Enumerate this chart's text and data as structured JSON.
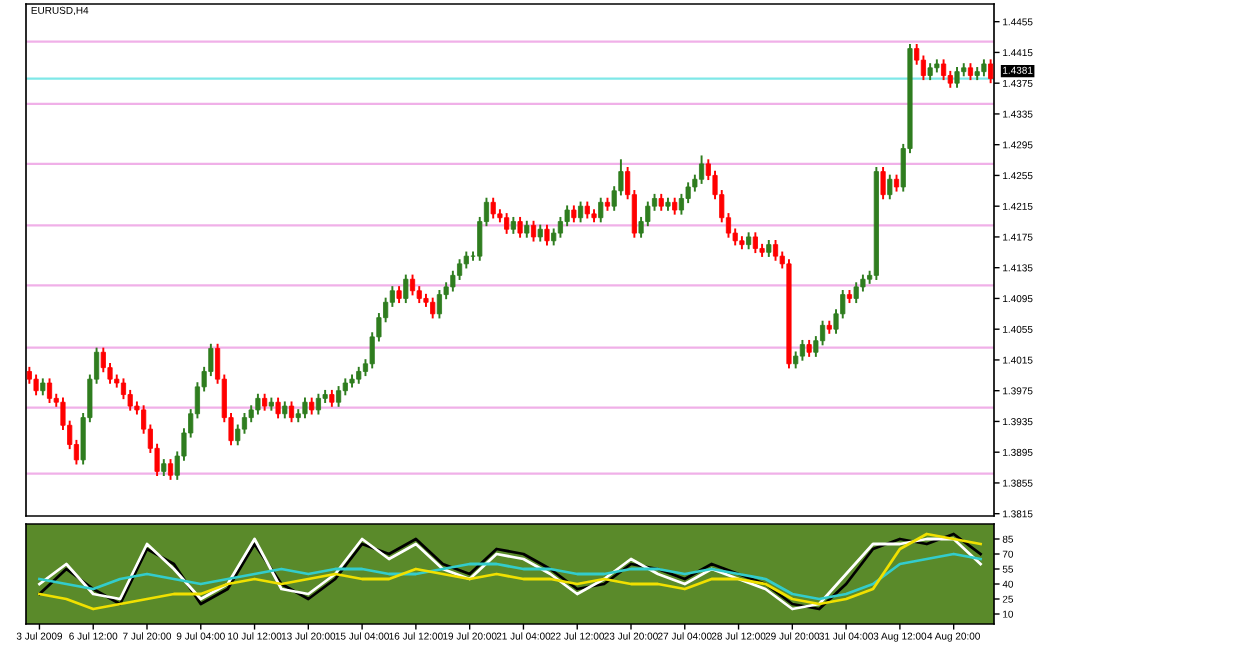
{
  "chart_data": [
    {
      "type": "candlestick",
      "title": "EURUSD,H4",
      "categories": [
        null,
        null,
        null,
        null,
        null,
        null,
        null,
        null,
        null,
        null,
        null,
        null,
        null,
        null,
        null,
        null,
        null,
        null,
        null,
        null,
        null,
        null,
        null,
        null,
        null,
        null,
        null,
        null,
        null,
        null,
        null,
        null,
        null,
        null,
        null,
        null,
        null,
        null,
        null,
        null,
        null,
        null,
        null,
        null,
        null,
        null,
        null,
        null,
        null,
        null,
        null,
        null,
        null,
        null,
        null,
        null,
        null,
        null,
        null,
        null,
        null,
        null,
        null,
        null,
        null,
        null,
        null,
        null,
        null,
        null,
        null,
        null,
        null,
        null,
        null,
        null,
        null,
        null,
        null,
        null,
        null,
        null,
        null,
        null,
        null,
        null,
        null,
        null,
        null,
        null,
        null,
        null,
        null,
        null,
        null,
        null,
        null,
        null,
        null,
        null,
        null,
        null,
        null,
        null,
        null,
        null,
        null,
        null,
        null,
        null,
        null,
        null,
        null,
        null,
        null,
        null,
        null,
        null,
        null,
        null,
        null,
        null,
        null,
        null,
        null,
        null,
        null,
        null,
        null,
        null,
        null,
        null,
        null,
        null,
        null,
        null,
        null,
        null,
        null,
        null,
        null,
        null,
        null,
        null
      ],
      "colors": [
        "#ff0000",
        "#ff0000",
        "#2f7d1f",
        "#ff0000",
        "#ff0000",
        "#ff0000",
        "#ff0000",
        "#ff0000",
        "#2f7d1f",
        "#2f7d1f",
        "#2f7d1f",
        "#ff0000",
        "#ff0000",
        "#ff0000",
        "#ff0000",
        "#ff0000",
        "#ff0000",
        "#ff0000",
        "#ff0000",
        "#ff0000",
        "#2f7d1f",
        "#ff0000",
        "#2f7d1f",
        "#2f7d1f",
        "#2f7d1f",
        "#2f7d1f",
        "#2f7d1f",
        "#2f7d1f",
        "#ff0000",
        "#ff0000",
        "#ff0000",
        "#2f7d1f",
        "#2f7d1f",
        "#2f7d1f",
        "#2f7d1f",
        "#ff0000",
        "#2f7d1f",
        "#ff0000",
        "#2f7d1f",
        "#ff0000",
        "#2f7d1f",
        "#2f7d1f",
        "#ff0000",
        "#2f7d1f",
        "#2f7d1f",
        "#ff0000",
        "#2f7d1f",
        "#2f7d1f",
        "#2f7d1f",
        "#2f7d1f",
        "#2f7d1f",
        "#2f7d1f",
        "#2f7d1f",
        "#2f7d1f",
        "#2f7d1f",
        "#ff0000",
        "#2f7d1f",
        "#ff0000",
        "#ff0000",
        "#ff0000",
        "#ff0000",
        "#2f7d1f",
        "#2f7d1f",
        "#2f7d1f",
        "#2f7d1f",
        "#2f7d1f",
        "#2f7d1f",
        "#2f7d1f",
        "#2f7d1f",
        "#ff0000",
        "#ff0000",
        "#ff0000",
        "#2f7d1f",
        "#ff0000",
        "#2f7d1f",
        "#ff0000",
        "#2f7d1f",
        "#ff0000",
        "#2f7d1f",
        "#2f7d1f",
        "#2f7d1f",
        "#ff0000",
        "#2f7d1f",
        "#ff0000",
        "#ff0000",
        "#2f7d1f",
        "#ff0000",
        "#2f7d1f",
        "#2f7d1f",
        "#ff0000",
        "#ff0000",
        "#2f7d1f",
        "#2f7d1f",
        "#2f7d1f",
        "#ff0000",
        "#2f7d1f",
        "#ff0000",
        "#2f7d1f",
        "#2f7d1f",
        "#2f7d1f",
        "#2f7d1f",
        "#ff0000",
        "#ff0000",
        "#ff0000",
        "#ff0000",
        "#ff0000",
        "#ff0000",
        "#2f7d1f",
        "#ff0000",
        "#ff0000",
        "#2f7d1f",
        "#ff0000",
        "#ff0000",
        "#ff0000",
        "#2f7d1f",
        "#2f7d1f",
        "#ff0000",
        "#2f7d1f",
        "#2f7d1f",
        "#ff0000",
        "#2f7d1f",
        "#2f7d1f",
        "#ff0000",
        "#2f7d1f",
        "#2f7d1f",
        "#2f7d1f",
        "#2f7d1f",
        "#ff0000",
        "#2f7d1f",
        "#ff0000",
        "#2f7d1f",
        "#2f7d1f",
        "#ff0000",
        "#ff0000",
        "#2f7d1f",
        "#2f7d1f",
        "#ff0000",
        "#ff0000",
        "#2f7d1f",
        "#2f7d1f",
        "#ff0000",
        "#2f7d1f",
        "#2f7d1f",
        "#ff0000"
      ],
      "ohlc": [
        [
          1.4,
          1.4006,
          1.3984,
          1.399
        ],
        [
          1.399,
          1.3996,
          1.3969,
          1.3975
        ],
        [
          1.3975,
          1.3991,
          1.3969,
          1.3985
        ],
        [
          1.3985,
          1.3991,
          1.3959,
          1.3965
        ],
        [
          1.3965,
          1.3971,
          1.3954,
          1.396
        ],
        [
          1.396,
          1.3966,
          1.3924,
          1.393
        ],
        [
          1.393,
          1.3936,
          1.3899,
          1.3905
        ],
        [
          1.3905,
          1.3911,
          1.3879,
          1.3885
        ],
        [
          1.3885,
          1.3946,
          1.3879,
          1.394
        ],
        [
          1.394,
          1.3996,
          1.3934,
          1.399
        ],
        [
          1.399,
          1.4031,
          1.3984,
          1.4025
        ],
        [
          1.4025,
          1.4031,
          1.3999,
          1.4005
        ],
        [
          1.4005,
          1.4011,
          1.3984,
          1.399
        ],
        [
          1.399,
          1.3996,
          1.3979,
          1.3985
        ],
        [
          1.3985,
          1.3991,
          1.3964,
          1.397
        ],
        [
          1.397,
          1.3976,
          1.3949,
          1.3955
        ],
        [
          1.3955,
          1.3961,
          1.3944,
          1.395
        ],
        [
          1.395,
          1.3956,
          1.3919,
          1.3925
        ],
        [
          1.3925,
          1.3931,
          1.3894,
          1.39
        ],
        [
          1.39,
          1.3906,
          1.3864,
          1.387
        ],
        [
          1.387,
          1.3886,
          1.3864,
          1.388
        ],
        [
          1.388,
          1.3886,
          1.3859,
          1.3865
        ],
        [
          1.3865,
          1.3896,
          1.3859,
          1.389
        ],
        [
          1.389,
          1.3926,
          1.3884,
          1.392
        ],
        [
          1.392,
          1.3951,
          1.3914,
          1.3945
        ],
        [
          1.3945,
          1.3986,
          1.3939,
          1.398
        ],
        [
          1.398,
          1.4006,
          1.3974,
          1.4
        ],
        [
          1.4,
          1.4036,
          1.3994,
          1.403
        ],
        [
          1.403,
          1.4036,
          1.3984,
          1.399
        ],
        [
          1.399,
          1.3996,
          1.3934,
          1.394
        ],
        [
          1.394,
          1.3946,
          1.3904,
          1.391
        ],
        [
          1.391,
          1.3931,
          1.3904,
          1.3925
        ],
        [
          1.3925,
          1.3946,
          1.3919,
          1.394
        ],
        [
          1.394,
          1.3956,
          1.3934,
          1.395
        ],
        [
          1.395,
          1.3971,
          1.3944,
          1.3965
        ],
        [
          1.3965,
          1.3971,
          1.3949,
          1.3955
        ],
        [
          1.3955,
          1.3966,
          1.3949,
          1.396
        ],
        [
          1.396,
          1.3966,
          1.3939,
          1.3945
        ],
        [
          1.3945,
          1.3961,
          1.3939,
          1.3955
        ],
        [
          1.3955,
          1.3961,
          1.3934,
          1.394
        ],
        [
          1.394,
          1.3951,
          1.3934,
          1.3945
        ],
        [
          1.3945,
          1.3966,
          1.3939,
          1.396
        ],
        [
          1.396,
          1.3966,
          1.3944,
          1.395
        ],
        [
          1.395,
          1.3971,
          1.3944,
          1.3965
        ],
        [
          1.3965,
          1.3976,
          1.3959,
          1.397
        ],
        [
          1.397,
          1.3976,
          1.3954,
          1.396
        ],
        [
          1.396,
          1.3981,
          1.3954,
          1.3975
        ],
        [
          1.3975,
          1.3991,
          1.3969,
          1.3985
        ],
        [
          1.3985,
          1.3996,
          1.3979,
          1.399
        ],
        [
          1.399,
          1.4006,
          1.3984,
          1.4
        ],
        [
          1.4,
          1.4016,
          1.3994,
          1.401
        ],
        [
          1.401,
          1.4051,
          1.4004,
          1.4045
        ],
        [
          1.4045,
          1.4076,
          1.4039,
          1.407
        ],
        [
          1.407,
          1.4096,
          1.4064,
          1.409
        ],
        [
          1.409,
          1.4111,
          1.4084,
          1.4105
        ],
        [
          1.4105,
          1.4111,
          1.4089,
          1.4095
        ],
        [
          1.4095,
          1.4126,
          1.4089,
          1.412
        ],
        [
          1.412,
          1.4126,
          1.4099,
          1.4105
        ],
        [
          1.4105,
          1.4111,
          1.4089,
          1.4095
        ],
        [
          1.4095,
          1.4101,
          1.4084,
          1.409
        ],
        [
          1.409,
          1.4096,
          1.4069,
          1.4075
        ],
        [
          1.4075,
          1.4106,
          1.4069,
          1.41
        ],
        [
          1.41,
          1.4116,
          1.4094,
          1.411
        ],
        [
          1.411,
          1.4131,
          1.4104,
          1.4125
        ],
        [
          1.4125,
          1.4146,
          1.4119,
          1.414
        ],
        [
          1.414,
          1.4156,
          1.4134,
          1.415
        ],
        [
          1.415,
          1.4156,
          1.4144,
          1.415
        ],
        [
          1.415,
          1.4201,
          1.4144,
          1.4195
        ],
        [
          1.4195,
          1.4226,
          1.4189,
          1.422
        ],
        [
          1.422,
          1.4226,
          1.4199,
          1.4205
        ],
        [
          1.4205,
          1.4211,
          1.4194,
          1.42
        ],
        [
          1.42,
          1.4206,
          1.4179,
          1.4185
        ],
        [
          1.4185,
          1.4201,
          1.4179,
          1.4195
        ],
        [
          1.4195,
          1.4201,
          1.4174,
          1.418
        ],
        [
          1.418,
          1.4196,
          1.4174,
          1.419
        ],
        [
          1.419,
          1.4196,
          1.4169,
          1.4175
        ],
        [
          1.4175,
          1.4191,
          1.4169,
          1.4185
        ],
        [
          1.4185,
          1.4191,
          1.4164,
          1.417
        ],
        [
          1.417,
          1.4186,
          1.4164,
          1.418
        ],
        [
          1.418,
          1.4201,
          1.4174,
          1.4195
        ],
        [
          1.4195,
          1.4216,
          1.4189,
          1.421
        ],
        [
          1.421,
          1.4216,
          1.4194,
          1.42
        ],
        [
          1.42,
          1.4221,
          1.4194,
          1.4215
        ],
        [
          1.4215,
          1.4221,
          1.4199,
          1.4205
        ],
        [
          1.4205,
          1.4211,
          1.4194,
          1.42
        ],
        [
          1.42,
          1.4226,
          1.4194,
          1.422
        ],
        [
          1.422,
          1.4226,
          1.4209,
          1.4215
        ],
        [
          1.4215,
          1.4241,
          1.4209,
          1.4235
        ],
        [
          1.4235,
          1.4276,
          1.4229,
          1.426
        ],
        [
          1.426,
          1.4266,
          1.4224,
          1.423
        ],
        [
          1.423,
          1.4236,
          1.4174,
          1.418
        ],
        [
          1.418,
          1.4201,
          1.4174,
          1.4195
        ],
        [
          1.4195,
          1.4221,
          1.4189,
          1.4215
        ],
        [
          1.4215,
          1.4231,
          1.4209,
          1.4225
        ],
        [
          1.4225,
          1.4231,
          1.4209,
          1.4215
        ],
        [
          1.4215,
          1.4226,
          1.4209,
          1.422
        ],
        [
          1.422,
          1.4226,
          1.4204,
          1.421
        ],
        [
          1.421,
          1.4231,
          1.4204,
          1.4225
        ],
        [
          1.4225,
          1.4246,
          1.4219,
          1.424
        ],
        [
          1.424,
          1.4256,
          1.4234,
          1.425
        ],
        [
          1.425,
          1.4281,
          1.4244,
          1.427
        ],
        [
          1.427,
          1.4276,
          1.4249,
          1.4255
        ],
        [
          1.4255,
          1.4261,
          1.4224,
          1.423
        ],
        [
          1.423,
          1.4236,
          1.4194,
          1.42
        ],
        [
          1.42,
          1.4206,
          1.4174,
          1.418
        ],
        [
          1.418,
          1.4186,
          1.4164,
          1.417
        ],
        [
          1.417,
          1.4176,
          1.4159,
          1.4165
        ],
        [
          1.4165,
          1.4181,
          1.4159,
          1.4175
        ],
        [
          1.4175,
          1.4181,
          1.4154,
          1.416
        ],
        [
          1.416,
          1.4166,
          1.4149,
          1.4155
        ],
        [
          1.4155,
          1.4171,
          1.4149,
          1.4165
        ],
        [
          1.4165,
          1.4171,
          1.4144,
          1.415
        ],
        [
          1.415,
          1.4156,
          1.4134,
          1.414
        ],
        [
          1.414,
          1.4146,
          1.4004,
          1.401
        ],
        [
          1.401,
          1.4026,
          1.4004,
          1.402
        ],
        [
          1.402,
          1.4041,
          1.4014,
          1.4035
        ],
        [
          1.4035,
          1.4041,
          1.4019,
          1.4025
        ],
        [
          1.4025,
          1.4046,
          1.4019,
          1.404
        ],
        [
          1.404,
          1.4066,
          1.4034,
          1.406
        ],
        [
          1.406,
          1.4066,
          1.4049,
          1.4055
        ],
        [
          1.4055,
          1.4081,
          1.4049,
          1.4075
        ],
        [
          1.4075,
          1.4106,
          1.4069,
          1.41
        ],
        [
          1.41,
          1.4106,
          1.4089,
          1.4095
        ],
        [
          1.4095,
          1.4116,
          1.4089,
          1.411
        ],
        [
          1.411,
          1.4126,
          1.4104,
          1.412
        ],
        [
          1.412,
          1.4131,
          1.4114,
          1.4125
        ],
        [
          1.4125,
          1.4266,
          1.4119,
          1.426
        ],
        [
          1.426,
          1.4266,
          1.4224,
          1.423
        ],
        [
          1.423,
          1.4256,
          1.4224,
          1.425
        ],
        [
          1.425,
          1.4256,
          1.4234,
          1.424
        ],
        [
          1.424,
          1.4296,
          1.4234,
          1.429
        ],
        [
          1.429,
          1.4426,
          1.4284,
          1.442
        ],
        [
          1.442,
          1.4426,
          1.4399,
          1.4405
        ],
        [
          1.4405,
          1.4411,
          1.4379,
          1.4385
        ],
        [
          1.4385,
          1.4401,
          1.4379,
          1.4395
        ],
        [
          1.4395,
          1.4406,
          1.4389,
          1.44
        ],
        [
          1.44,
          1.4406,
          1.4379,
          1.4385
        ],
        [
          1.4385,
          1.4391,
          1.4369,
          1.4375
        ],
        [
          1.4375,
          1.4396,
          1.4369,
          1.439
        ],
        [
          1.439,
          1.4401,
          1.4384,
          1.4395
        ],
        [
          1.4395,
          1.4401,
          1.4379,
          1.4385
        ],
        [
          1.4385,
          1.4396,
          1.4379,
          1.439
        ],
        [
          1.439,
          1.4406,
          1.4384,
          1.44
        ],
        [
          1.44,
          1.4406,
          1.4375,
          1.4381
        ]
      ],
      "ylim": [
        1.3812,
        1.4478
      ],
      "yticks": [
        1.3815,
        1.3855,
        1.3895,
        1.3935,
        1.3975,
        1.4015,
        1.4055,
        1.4095,
        1.4135,
        1.4175,
        1.4215,
        1.4255,
        1.4295,
        1.4335,
        1.4375,
        1.4415,
        1.4455
      ],
      "ref_lines": [
        {
          "axis": "y",
          "value": 1.4429,
          "label": null,
          "color": "#f0b0e8"
        },
        {
          "axis": "y",
          "value": 1.4348,
          "label": null,
          "color": "#f0b0e8"
        },
        {
          "axis": "y",
          "value": 1.427,
          "label": null,
          "color": "#f0b0e8"
        },
        {
          "axis": "y",
          "value": 1.419,
          "label": null,
          "color": "#f0b0e8"
        },
        {
          "axis": "y",
          "value": 1.4112,
          "label": null,
          "color": "#f0b0e8"
        },
        {
          "axis": "y",
          "value": 1.4031,
          "label": null,
          "color": "#f0b0e8"
        },
        {
          "axis": "y",
          "value": 1.3953,
          "label": null,
          "color": "#f0b0e8"
        },
        {
          "axis": "y",
          "value": 1.3867,
          "label": null,
          "color": "#f0b0e8"
        },
        {
          "axis": "y",
          "value": 1.4381,
          "label": "1.4381",
          "color": "#7fe8e8"
        }
      ],
      "grid": false,
      "legend": false,
      "tick_labels": "y"
    },
    {
      "type": "line",
      "categories": [
        "3 Jul 2009",
        null,
        "6 Jul 12:00",
        null,
        "7 Jul 20:00",
        null,
        "9 Jul 04:00",
        null,
        "10 Jul 12:00",
        null,
        "13 Jul 20:00",
        null,
        "15 Jul 04:00",
        null,
        "16 Jul 12:00",
        null,
        "19 Jul 20:00",
        null,
        "21 Jul 04:00",
        null,
        "22 Jul 12:00",
        null,
        "23 Jul 20:00",
        null,
        "27 Jul 04:00",
        null,
        "28 Jul 12:00",
        null,
        "29 Jul 20:00",
        null,
        "31 Jul 04:00",
        null,
        "3 Aug 12:00",
        null,
        "4 Aug 20:00",
        null
      ],
      "series": [
        {
          "color": "#000000",
          "values": [
            30,
            55,
            35,
            20,
            75,
            60,
            20,
            35,
            80,
            40,
            25,
            45,
            80,
            70,
            85,
            60,
            50,
            75,
            70,
            55,
            35,
            40,
            60,
            55,
            45,
            60,
            50,
            40,
            20,
            15,
            40,
            75,
            85,
            80,
            90,
            70
          ]
        },
        {
          "color": "#ffffff",
          "values": [
            40,
            60,
            30,
            25,
            80,
            55,
            25,
            40,
            85,
            35,
            30,
            50,
            85,
            65,
            80,
            55,
            45,
            70,
            65,
            50,
            30,
            45,
            65,
            50,
            40,
            55,
            45,
            35,
            15,
            20,
            50,
            80,
            80,
            85,
            85,
            60
          ]
        },
        {
          "color": "#33cccc",
          "values": [
            45,
            40,
            35,
            45,
            50,
            45,
            40,
            45,
            50,
            55,
            50,
            55,
            55,
            50,
            50,
            55,
            60,
            60,
            55,
            55,
            50,
            50,
            55,
            55,
            50,
            55,
            50,
            45,
            30,
            25,
            30,
            40,
            60,
            65,
            70,
            65
          ]
        },
        {
          "color": "#f0e000",
          "values": [
            30,
            25,
            15,
            20,
            25,
            30,
            30,
            40,
            45,
            40,
            45,
            50,
            45,
            45,
            55,
            50,
            45,
            50,
            45,
            45,
            40,
            45,
            40,
            40,
            35,
            45,
            45,
            40,
            25,
            20,
            25,
            35,
            75,
            90,
            85,
            80
          ]
        }
      ],
      "ylim": [
        0,
        100
      ],
      "yticks": [
        10,
        25,
        40,
        55,
        70,
        85
      ],
      "grid": false,
      "legend": false,
      "line_style": "solid",
      "marker": "none"
    }
  ]
}
